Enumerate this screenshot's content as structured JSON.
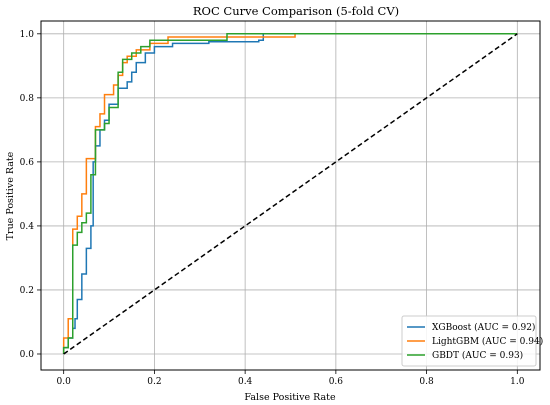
{
  "chart_data": {
    "type": "line",
    "title": "ROC Curve Comparison (5-fold CV)",
    "xlabel": "False Positive Rate",
    "ylabel": "True Positive Rate",
    "xlim": [
      -0.05,
      1.05
    ],
    "ylim": [
      -0.05,
      1.04
    ],
    "xticks": [
      "0.0",
      "0.2",
      "0.4",
      "0.6",
      "0.8",
      "1.0"
    ],
    "yticks": [
      "0.0",
      "0.2",
      "0.4",
      "0.6",
      "0.8",
      "1.0"
    ],
    "grid": true,
    "legend_position": "lower-right",
    "series": [
      {
        "name": "XGBoost (AUC = 0.92)",
        "color": "#1f77b4",
        "style": "step",
        "points": [
          [
            0.0,
            0.0
          ],
          [
            0.0,
            0.02
          ],
          [
            0.01,
            0.02
          ],
          [
            0.01,
            0.05
          ],
          [
            0.02,
            0.05
          ],
          [
            0.02,
            0.08
          ],
          [
            0.025,
            0.08
          ],
          [
            0.025,
            0.11
          ],
          [
            0.03,
            0.11
          ],
          [
            0.03,
            0.17
          ],
          [
            0.04,
            0.17
          ],
          [
            0.04,
            0.25
          ],
          [
            0.05,
            0.25
          ],
          [
            0.05,
            0.33
          ],
          [
            0.06,
            0.33
          ],
          [
            0.06,
            0.4
          ],
          [
            0.065,
            0.4
          ],
          [
            0.065,
            0.6
          ],
          [
            0.07,
            0.6
          ],
          [
            0.07,
            0.65
          ],
          [
            0.08,
            0.65
          ],
          [
            0.08,
            0.7
          ],
          [
            0.09,
            0.7
          ],
          [
            0.09,
            0.73
          ],
          [
            0.1,
            0.73
          ],
          [
            0.1,
            0.78
          ],
          [
            0.12,
            0.78
          ],
          [
            0.12,
            0.83
          ],
          [
            0.14,
            0.83
          ],
          [
            0.14,
            0.85
          ],
          [
            0.15,
            0.85
          ],
          [
            0.15,
            0.88
          ],
          [
            0.16,
            0.88
          ],
          [
            0.16,
            0.91
          ],
          [
            0.18,
            0.91
          ],
          [
            0.18,
            0.94
          ],
          [
            0.2,
            0.94
          ],
          [
            0.2,
            0.96
          ],
          [
            0.24,
            0.96
          ],
          [
            0.24,
            0.97
          ],
          [
            0.32,
            0.97
          ],
          [
            0.32,
            0.975
          ],
          [
            0.43,
            0.975
          ],
          [
            0.43,
            0.98
          ],
          [
            0.44,
            0.98
          ],
          [
            0.44,
            1.0
          ],
          [
            1.0,
            1.0
          ]
        ]
      },
      {
        "name": "LightGBM (AUC = 0.94)",
        "color": "#ff7f0e",
        "style": "step",
        "points": [
          [
            0.0,
            0.0
          ],
          [
            0.0,
            0.05
          ],
          [
            0.01,
            0.05
          ],
          [
            0.01,
            0.11
          ],
          [
            0.02,
            0.11
          ],
          [
            0.02,
            0.39
          ],
          [
            0.03,
            0.39
          ],
          [
            0.03,
            0.43
          ],
          [
            0.04,
            0.43
          ],
          [
            0.04,
            0.5
          ],
          [
            0.05,
            0.5
          ],
          [
            0.05,
            0.61
          ],
          [
            0.07,
            0.61
          ],
          [
            0.07,
            0.71
          ],
          [
            0.08,
            0.71
          ],
          [
            0.08,
            0.75
          ],
          [
            0.09,
            0.75
          ],
          [
            0.09,
            0.81
          ],
          [
            0.11,
            0.81
          ],
          [
            0.11,
            0.84
          ],
          [
            0.12,
            0.84
          ],
          [
            0.12,
            0.87
          ],
          [
            0.13,
            0.87
          ],
          [
            0.13,
            0.91
          ],
          [
            0.14,
            0.91
          ],
          [
            0.14,
            0.93
          ],
          [
            0.16,
            0.93
          ],
          [
            0.16,
            0.95
          ],
          [
            0.19,
            0.95
          ],
          [
            0.19,
            0.97
          ],
          [
            0.23,
            0.97
          ],
          [
            0.23,
            0.99
          ],
          [
            0.51,
            0.99
          ],
          [
            0.51,
            1.0
          ],
          [
            1.0,
            1.0
          ]
        ]
      },
      {
        "name": "GBDT (AUC = 0.93)",
        "color": "#2ca02c",
        "style": "step",
        "points": [
          [
            0.0,
            0.0
          ],
          [
            0.0,
            0.02
          ],
          [
            0.01,
            0.02
          ],
          [
            0.01,
            0.05
          ],
          [
            0.02,
            0.05
          ],
          [
            0.02,
            0.34
          ],
          [
            0.03,
            0.34
          ],
          [
            0.03,
            0.38
          ],
          [
            0.04,
            0.38
          ],
          [
            0.04,
            0.41
          ],
          [
            0.05,
            0.41
          ],
          [
            0.05,
            0.44
          ],
          [
            0.06,
            0.44
          ],
          [
            0.06,
            0.56
          ],
          [
            0.07,
            0.56
          ],
          [
            0.07,
            0.7
          ],
          [
            0.09,
            0.7
          ],
          [
            0.09,
            0.72
          ],
          [
            0.1,
            0.72
          ],
          [
            0.1,
            0.77
          ],
          [
            0.12,
            0.77
          ],
          [
            0.12,
            0.88
          ],
          [
            0.13,
            0.88
          ],
          [
            0.13,
            0.92
          ],
          [
            0.15,
            0.92
          ],
          [
            0.15,
            0.94
          ],
          [
            0.17,
            0.94
          ],
          [
            0.17,
            0.96
          ],
          [
            0.19,
            0.96
          ],
          [
            0.19,
            0.98
          ],
          [
            0.36,
            0.98
          ],
          [
            0.36,
            1.0
          ],
          [
            1.0,
            1.0
          ]
        ]
      }
    ],
    "reference_line": {
      "style": "dashed",
      "color": "#000000",
      "points": [
        [
          0,
          0
        ],
        [
          1,
          1
        ]
      ]
    }
  }
}
